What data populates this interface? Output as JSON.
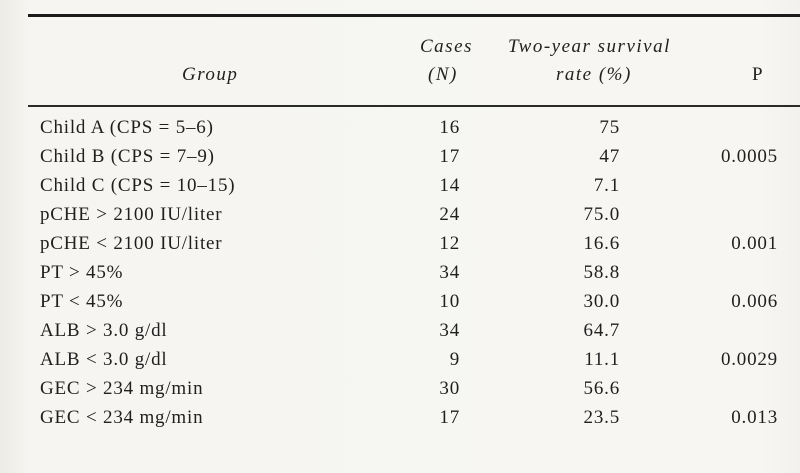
{
  "table": {
    "headers": {
      "group": "Group",
      "cases_line1": "Cases",
      "cases_line2": "(N)",
      "rate_line1": "Two-year survival",
      "rate_line2": "rate (%)",
      "p": "P"
    },
    "rows": [
      {
        "group": "Child A (CPS = 5–6)",
        "cases": "16",
        "rate": "75",
        "p": ""
      },
      {
        "group": "Child B (CPS = 7–9)",
        "cases": "17",
        "rate": "47",
        "p": "0.0005"
      },
      {
        "group": "Child C (CPS = 10–15)",
        "cases": "14",
        "rate": "7.1",
        "p": ""
      },
      {
        "group": "pCHE > 2100 IU/liter",
        "cases": "24",
        "rate": "75.0",
        "p": ""
      },
      {
        "group": "pCHE < 2100 IU/liter",
        "cases": "12",
        "rate": "16.6",
        "p": "0.001"
      },
      {
        "group": "PT > 45%",
        "cases": "34",
        "rate": "58.8",
        "p": ""
      },
      {
        "group": "PT < 45%",
        "cases": "10",
        "rate": "30.0",
        "p": "0.006"
      },
      {
        "group": "ALB > 3.0 g/dl",
        "cases": "34",
        "rate": "64.7",
        "p": ""
      },
      {
        "group": "ALB < 3.0 g/dl",
        "cases": "9",
        "rate": "11.1",
        "p": "0.0029"
      },
      {
        "group": "GEC > 234 mg/min",
        "cases": "30",
        "rate": "56.6",
        "p": ""
      },
      {
        "group": "GEC < 234 mg/min",
        "cases": "17",
        "rate": "23.5",
        "p": "0.013"
      }
    ]
  }
}
